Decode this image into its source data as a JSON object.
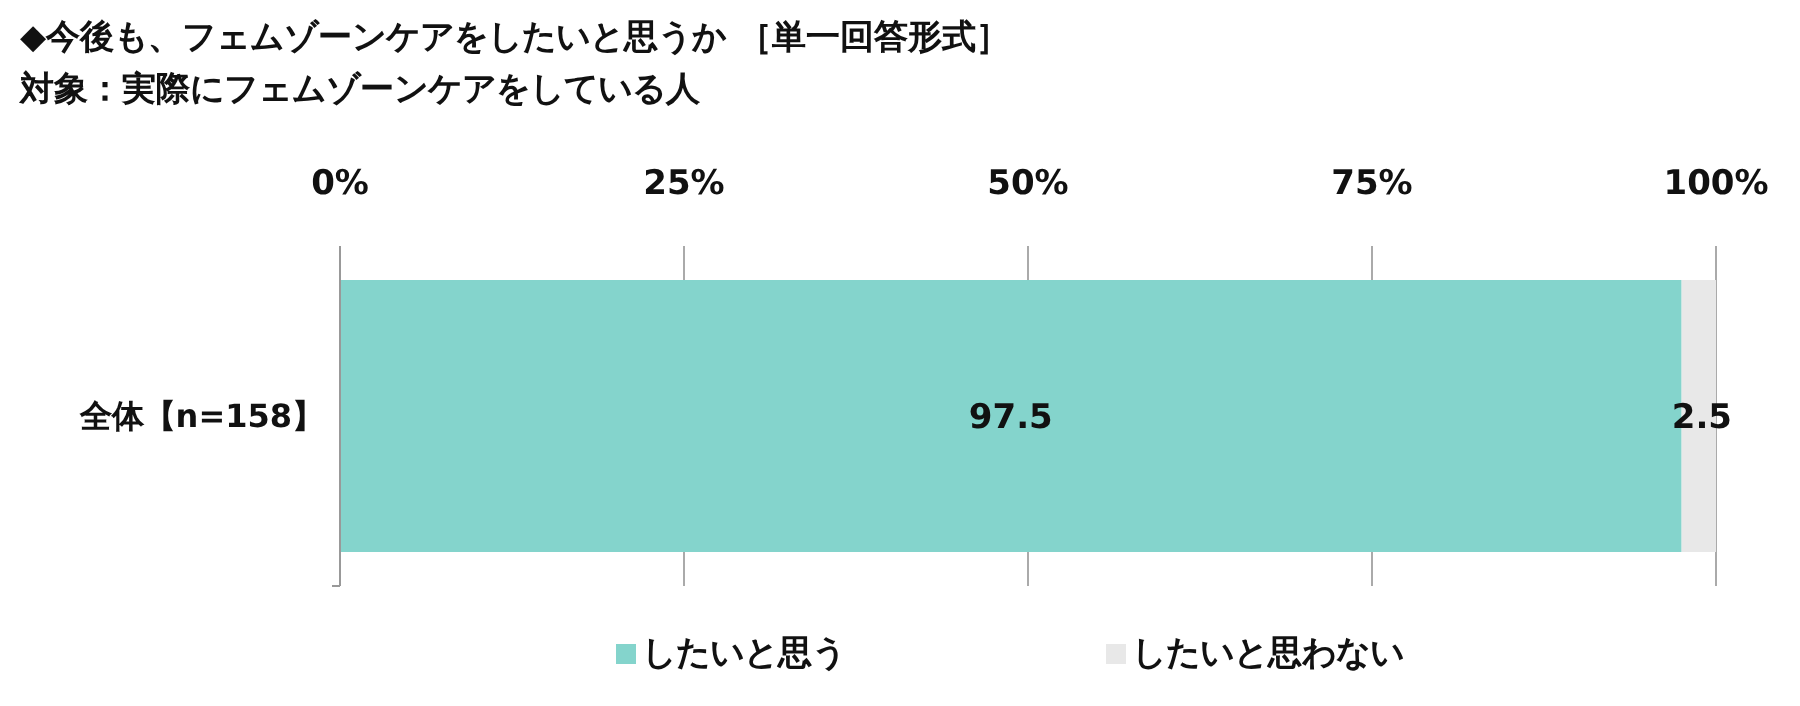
{
  "chart_data": {
    "type": "bar",
    "title": "◆今後も、フェムゾーンケアをしたいと思うか ［単一回答形式］",
    "subtitle": "対象：実際にフェムゾーンケアをしている人",
    "orientation": "horizontal",
    "stacked": true,
    "categories": [
      "全体【n=158】"
    ],
    "series": [
      {
        "name": "したいと思う",
        "color": "#84d4cc",
        "values": [
          97.5
        ]
      },
      {
        "name": "したいと思わない",
        "color": "#e8e8e8",
        "values": [
          2.5
        ]
      }
    ],
    "xlim": [
      0,
      100
    ],
    "xticks": [
      {
        "value": 0,
        "label": "0%"
      },
      {
        "value": 25,
        "label": "25%"
      },
      {
        "value": 50,
        "label": "50%"
      },
      {
        "value": 75,
        "label": "75%"
      },
      {
        "value": 100,
        "label": "100%"
      }
    ],
    "grid": "x",
    "data_labels": true,
    "legend": "bottom"
  }
}
